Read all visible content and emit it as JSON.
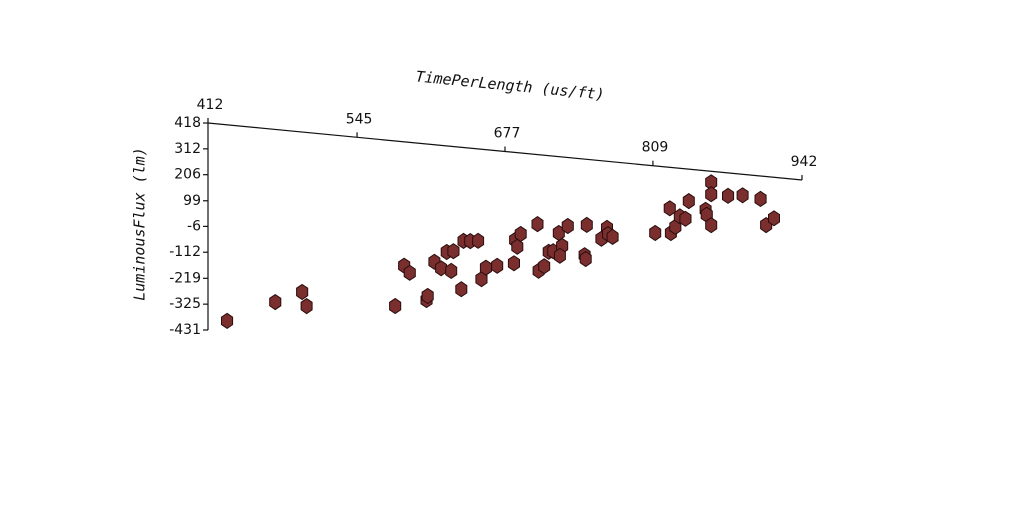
{
  "chart_data": {
    "type": "scatter",
    "xlabel": "TimePerLength (us/ft)",
    "ylabel": "LuminousFlux (lm)",
    "color": "#7a2e2e",
    "x": [
      429,
      472,
      496,
      500,
      579,
      607,
      608,
      587,
      592,
      614,
      620,
      625,
      629,
      631,
      638,
      640,
      646,
      653,
      656,
      660,
      670,
      685,
      686,
      688,
      691,
      706,
      707,
      712,
      716,
      720,
      725,
      728,
      726,
      733,
      748,
      749,
      750,
      763,
      768,
      769,
      773,
      811,
      824,
      825,
      829,
      833,
      838,
      841,
      856,
      857,
      861,
      861,
      861,
      876,
      889,
      905,
      910,
      917
    ],
    "values": [
      -386,
      -290,
      -238,
      -294,
      -259,
      -222,
      -205,
      -90,
      -117,
      -62,
      -86,
      -17,
      -93,
      -11,
      -164,
      35,
      37,
      41,
      -115,
      -66,
      -54,
      -37,
      59,
      32,
      86,
      133,
      -58,
      -37,
      24,
      28,
      105,
      53,
      12,
      137,
      24,
      9,
      149,
      98,
      145,
      120,
      110,
      143,
      250,
      149,
      176,
      221,
      213,
      287,
      258,
      238,
      197,
      373,
      324,
      324,
      332,
      324,
      219,
      250
    ],
    "xlim": [
      412,
      942
    ],
    "xticks": [
      412,
      545,
      677,
      809,
      942
    ],
    "ylim": [
      -431,
      418
    ],
    "yticks": [
      418,
      312,
      206,
      99,
      -6,
      -112,
      -219,
      -325,
      -431
    ]
  }
}
